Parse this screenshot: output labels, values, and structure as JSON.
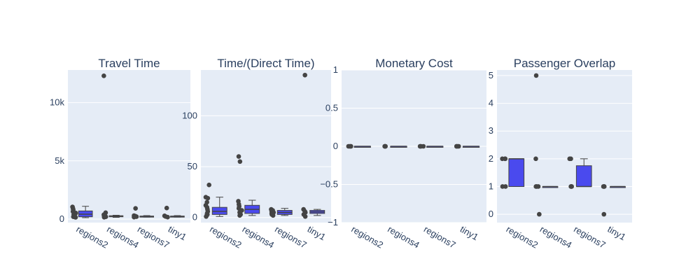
{
  "colors": {
    "box_fill": "#4a4aee",
    "box_line": "#444444",
    "plot_bg": "#e5ecf6",
    "grid": "#ffffff",
    "text": "#2a3f5f",
    "point": "#444444"
  },
  "chart_data": [
    {
      "type": "box",
      "title": "Travel Time",
      "categories": [
        "regions2",
        "regions4",
        "regions7",
        "tiny1"
      ],
      "ylim": [
        -300,
        12800
      ],
      "yticks": [
        0,
        5000,
        10000
      ],
      "yticklabels": [
        "0",
        "5k",
        "10k"
      ],
      "grid": true,
      "series": [
        {
          "category": "regions2",
          "q1": 200,
          "median": 420,
          "q3": 700,
          "whisker_low": 120,
          "whisker_high": 1100,
          "points": [
            150,
            200,
            260,
            320,
            400,
            520,
            650,
            780,
            900,
            1050
          ]
        },
        {
          "category": "regions4",
          "q1": 200,
          "median": 240,
          "q3": 290,
          "whisker_low": 150,
          "whisker_high": 330,
          "points": [
            160,
            200,
            250,
            300,
            380,
            550,
            12300
          ]
        },
        {
          "category": "regions7",
          "q1": 200,
          "median": 230,
          "q3": 260,
          "whisker_low": 170,
          "whisker_high": 300,
          "points": [
            170,
            210,
            250,
            300,
            920
          ]
        },
        {
          "category": "tiny1",
          "q1": 200,
          "median": 230,
          "q3": 260,
          "whisker_low": 170,
          "whisker_high": 300,
          "points": [
            170,
            220,
            280,
            950
          ]
        }
      ]
    },
    {
      "type": "box",
      "title": "Time/(Direct Time)",
      "categories": [
        "regions2",
        "regions4",
        "regions7",
        "tiny1"
      ],
      "ylim": [
        -5,
        145
      ],
      "yticks": [
        0,
        50,
        100
      ],
      "yticklabels": [
        "0",
        "50",
        "100"
      ],
      "grid": true,
      "series": [
        {
          "category": "regions2",
          "q1": 3,
          "median": 6,
          "q3": 10,
          "whisker_low": 1,
          "whisker_high": 20,
          "points": [
            1,
            2,
            3,
            4,
            6,
            8,
            10,
            12,
            15,
            19,
            20,
            32
          ]
        },
        {
          "category": "regions4",
          "q1": 4,
          "median": 8,
          "q3": 12,
          "whisker_low": 2,
          "whisker_high": 17,
          "points": [
            2,
            3,
            5,
            7,
            9,
            11,
            13,
            16,
            55,
            60
          ]
        },
        {
          "category": "regions7",
          "q1": 3,
          "median": 5,
          "q3": 7,
          "whisker_low": 2,
          "whisker_high": 9,
          "points": [
            2,
            3,
            4,
            5,
            6,
            7,
            8
          ]
        },
        {
          "category": "tiny1",
          "q1": 4,
          "median": 5.5,
          "q3": 7,
          "whisker_low": 2,
          "whisker_high": 8,
          "points": [
            1,
            3,
            5,
            6,
            8,
            140
          ]
        }
      ]
    },
    {
      "type": "box",
      "title": "Monetary Cost",
      "categories": [
        "regions2",
        "regions4",
        "regions7",
        "tiny1"
      ],
      "ylim": [
        -1,
        1
      ],
      "yticks": [
        -1,
        -0.5,
        0,
        0.5,
        1
      ],
      "yticklabels": [
        "−1",
        "−0.5",
        "0",
        "0.5",
        "1"
      ],
      "grid": true,
      "series": [
        {
          "category": "regions2",
          "q1": 0,
          "median": 0,
          "q3": 0,
          "whisker_low": 0,
          "whisker_high": 0,
          "points": [
            0,
            0,
            0,
            0
          ]
        },
        {
          "category": "regions4",
          "q1": 0,
          "median": 0,
          "q3": 0,
          "whisker_low": 0,
          "whisker_high": 0,
          "points": [
            0,
            0,
            0,
            0
          ]
        },
        {
          "category": "regions7",
          "q1": 0,
          "median": 0,
          "q3": 0,
          "whisker_low": 0,
          "whisker_high": 0,
          "points": [
            0,
            0,
            0,
            0
          ]
        },
        {
          "category": "tiny1",
          "q1": 0,
          "median": 0,
          "q3": 0,
          "whisker_low": 0,
          "whisker_high": 0,
          "points": [
            0,
            0,
            0,
            0
          ]
        }
      ]
    },
    {
      "type": "box",
      "title": "Passenger Overlap",
      "categories": [
        "regions2",
        "regions4",
        "regions7",
        "tiny1"
      ],
      "ylim": [
        -0.3,
        5.2
      ],
      "yticks": [
        0,
        1,
        2,
        3,
        4,
        5
      ],
      "yticklabels": [
        "0",
        "1",
        "2",
        "3",
        "4",
        "5"
      ],
      "grid": true,
      "series": [
        {
          "category": "regions2",
          "q1": 1,
          "median": 2,
          "q3": 2,
          "whisker_low": 1,
          "whisker_high": 2,
          "points": [
            1,
            1,
            2,
            2,
            2
          ]
        },
        {
          "category": "regions4",
          "q1": 1,
          "median": 1,
          "q3": 1,
          "whisker_low": 1,
          "whisker_high": 1,
          "points": [
            0,
            1,
            1,
            1,
            2,
            5
          ]
        },
        {
          "category": "regions7",
          "q1": 1,
          "median": 1,
          "q3": 1.75,
          "whisker_low": 1,
          "whisker_high": 2,
          "points": [
            1,
            1,
            1,
            2,
            2
          ]
        },
        {
          "category": "tiny1",
          "q1": 1,
          "median": 1,
          "q3": 1,
          "whisker_low": 1,
          "whisker_high": 1,
          "points": [
            0,
            1,
            1,
            1
          ]
        }
      ]
    }
  ]
}
